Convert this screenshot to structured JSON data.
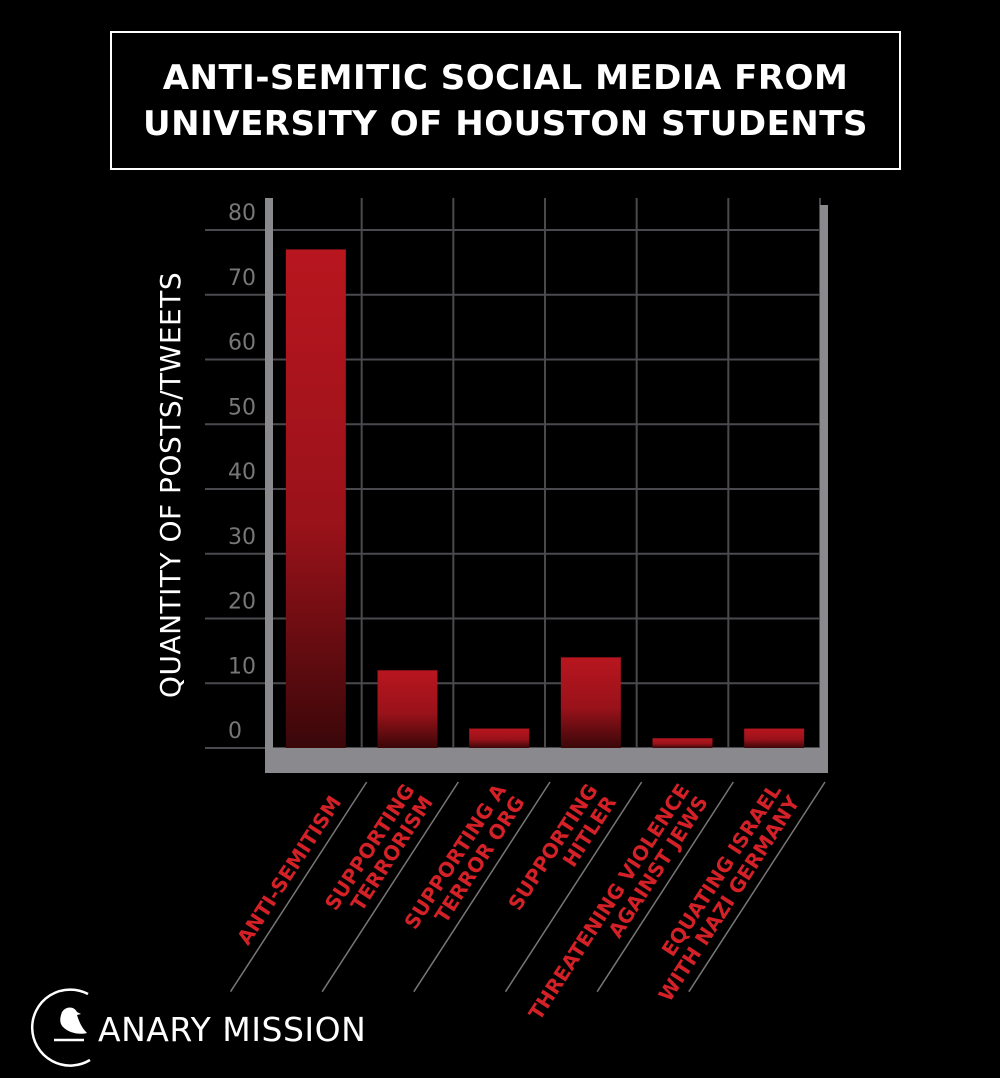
{
  "header": {
    "title_line1": "ANTI-SEMITIC SOCIAL MEDIA FROM",
    "title_line2": "UNIVERSITY OF HOUSTON STUDENTS"
  },
  "chart_data": {
    "type": "bar",
    "title": "ANTI-SEMITIC SOCIAL MEDIA FROM UNIVERSITY OF HOUSTON STUDENTS",
    "ylabel": "QUANTITY OF POSTS/TWEETS",
    "xlabel": "",
    "ylim": [
      0,
      80
    ],
    "yticks": [
      0,
      10,
      20,
      30,
      40,
      50,
      60,
      70,
      80
    ],
    "categories": [
      [
        "ANTI-SEMITISM"
      ],
      [
        "SUPPORTING",
        "TERRORISM"
      ],
      [
        "SUPPORTING A",
        "TERROR ORG"
      ],
      [
        "SUPPORTING",
        "HITLER"
      ],
      [
        "THREATENING VIOLENCE",
        "AGAINST JEWS"
      ],
      [
        "EQUATING ISRAEL",
        "WITH NAZI GERMANY"
      ]
    ],
    "values": [
      77,
      12,
      3,
      14,
      1.5,
      3
    ],
    "grid": true,
    "bar_color": "#b3141d",
    "label_color": "#d42027",
    "axis_color": "#8a8a8e"
  },
  "footer": {
    "logo_text": "ANARY MISSION",
    "logo_icon": "canary-bird-icon"
  }
}
